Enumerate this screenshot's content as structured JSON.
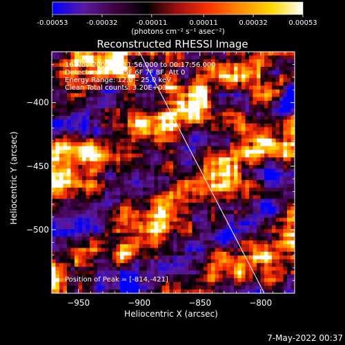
{
  "chart_data": {
    "type": "heatmap",
    "title": "Reconstructed RHESSI Image",
    "xlabel": "Heliocentric X (arcsec)",
    "ylabel": "Heliocentric Y (arcsec)",
    "xlim": [
      -972,
      -772
    ],
    "ylim": [
      -550,
      -360
    ],
    "xticks": [
      -950,
      -900,
      -850,
      -800
    ],
    "yticks": [
      -400,
      -450,
      -500
    ],
    "colorbar": {
      "ticks": [
        "-0.00053",
        "-0.00032",
        "-0.00011",
        "0.00011",
        "0.00032",
        "0.00053"
      ],
      "tick_values": [
        -0.00053,
        -0.00032,
        -0.00011,
        0.00011,
        0.00032,
        0.00053
      ],
      "range": [
        -0.00053,
        0.00053
      ],
      "unit_label": "(photons cm⁻² s⁻¹ asec⁻²)",
      "colormap": [
        "#0000ff",
        "#5a1aa0",
        "#400040",
        "#000000",
        "#a01010",
        "#ff3300",
        "#ff8c00",
        "#ffd700",
        "#ffffff"
      ]
    },
    "annotations": {
      "time": "16-Nov-2003 00:11:56.000 to 00:17:56.000",
      "detectors": "Detectors: 3F 4F 5F 6F 7F 8F, Att 0",
      "energy": "Energy Range: 12.0 – 25.0 keV",
      "clean": "Clean     Total counts: 3.20E+03",
      "peak": "Position of Peak = [-814,-421]"
    },
    "peak": {
      "x": -814,
      "y": -421
    },
    "limb_line": [
      {
        "x": -900,
        "y": -360
      },
      {
        "x": -797,
        "y": -550
      }
    ]
  },
  "footer": {
    "timestamp": "7-May-2022 00:37"
  }
}
